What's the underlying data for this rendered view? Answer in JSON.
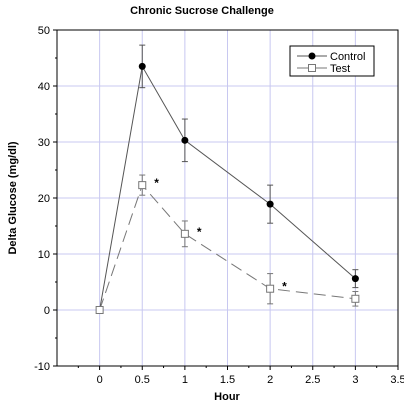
{
  "chart_data": {
    "type": "line",
    "title": "Chronic Sucrose Challenge",
    "xlabel": "Hour",
    "ylabel": "Delta Glucose (mg/dl)",
    "xlim": [
      -0.5,
      3.5
    ],
    "ylim": [
      -10,
      50
    ],
    "x_ticks": [
      {
        "value": 0,
        "label": "0"
      },
      {
        "value": 0.5,
        "label": "0.5"
      },
      {
        "value": 1,
        "label": "1"
      },
      {
        "value": 1.5,
        "label": "1.5"
      },
      {
        "value": 2,
        "label": "2"
      },
      {
        "value": 2.5,
        "label": "2.5"
      },
      {
        "value": 3,
        "label": "3"
      },
      {
        "value": 3.5,
        "label": "3.5"
      }
    ],
    "y_ticks": [
      {
        "value": -10,
        "label": "-10"
      },
      {
        "value": 0,
        "label": "0"
      },
      {
        "value": 10,
        "label": "10"
      },
      {
        "value": 20,
        "label": "20"
      },
      {
        "value": 30,
        "label": "30"
      },
      {
        "value": 40,
        "label": "40"
      },
      {
        "value": 50,
        "label": "50"
      }
    ],
    "grid": true,
    "grid_color": "#c8c8f0",
    "legend_position": "top-right",
    "x": [
      0,
      0.5,
      1,
      2,
      3
    ],
    "series": [
      {
        "name": "Control",
        "marker": "filled-circle",
        "line_style": "solid",
        "color": "#555555",
        "values": [
          0,
          43.5,
          30.3,
          18.9,
          5.6
        ],
        "errors": [
          0,
          3.8,
          3.8,
          3.4,
          1.6
        ]
      },
      {
        "name": "Test",
        "marker": "open-square",
        "line_style": "dashed",
        "color": "#777777",
        "values": [
          0,
          22.3,
          13.6,
          3.8,
          2.0
        ],
        "errors": [
          0,
          1.8,
          2.3,
          2.7,
          1.3
        ]
      }
    ],
    "annotations": [
      {
        "text": "*",
        "x": 0.5,
        "y": 22.3
      },
      {
        "text": "*",
        "x": 1,
        "y": 13.6
      },
      {
        "text": "*",
        "x": 2,
        "y": 3.8
      }
    ]
  }
}
